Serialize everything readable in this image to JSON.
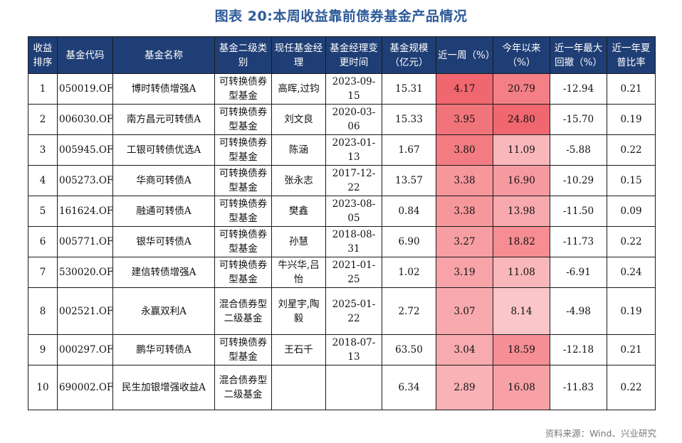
{
  "title": "图表 20:本周收益靠前债券基金产品情况",
  "headers": [
    "收益排序",
    "基金代码",
    "基金名称",
    "基金二级类别",
    "现任基金经理",
    "基金经理变更时间",
    "基金规模（亿元）",
    "近一周（%）",
    "今年以来（%）",
    "近一年最大回撤（%）",
    "近一年夏普比率"
  ],
  "rows": [
    {
      "rank": "1",
      "code": "050019.OF",
      "name": "博时转债增强A",
      "category": "可转换债券型基金",
      "manager": "高晖,过钧",
      "change_date": "2023-09-15",
      "size": "15.31",
      "week": "4.17",
      "ytd": "20.79",
      "drawdown": "-12.94",
      "sharpe": "0.21",
      "week_color": "#f0676f",
      "ytd_color": "#f47f86"
    },
    {
      "rank": "2",
      "code": "006030.OF",
      "name": "南方昌元可转债A",
      "category": "可转换债券型基金",
      "manager": "刘文良",
      "change_date": "2020-03-06",
      "size": "15.33",
      "week": "3.95",
      "ytd": "24.80",
      "drawdown": "-15.70",
      "sharpe": "0.19",
      "week_color": "#f2747b",
      "ytd_color": "#f0676f"
    },
    {
      "rank": "3",
      "code": "005945.OF",
      "name": "工银可转债优选A",
      "category": "可转换债券型基金",
      "manager": "陈涵",
      "change_date": "2023-01-13",
      "size": "1.67",
      "week": "3.80",
      "ytd": "11.09",
      "drawdown": "-5.88",
      "sharpe": "0.22",
      "week_color": "#f37c83",
      "ytd_color": "#f9b7bb"
    },
    {
      "rank": "4",
      "code": "005273.OF",
      "name": "华商可转债A",
      "category": "可转换债券型基金",
      "manager": "张永志",
      "change_date": "2017-12-22",
      "size": "13.57",
      "week": "3.38",
      "ytd": "16.90",
      "drawdown": "-10.29",
      "sharpe": "0.15",
      "week_color": "#f6979c",
      "ytd_color": "#f69aa0"
    },
    {
      "rank": "5",
      "code": "161624.OF",
      "name": "融通可转债A",
      "category": "可转换债券型基金",
      "manager": "樊鑫",
      "change_date": "2023-08-05",
      "size": "0.84",
      "week": "3.38",
      "ytd": "13.98",
      "drawdown": "-11.50",
      "sharpe": "0.09",
      "week_color": "#f6979c",
      "ytd_color": "#f7a9ae"
    },
    {
      "rank": "6",
      "code": "005771.OF",
      "name": "银华可转债A",
      "category": "可转换债券型基金",
      "manager": "孙慧",
      "change_date": "2018-08-31",
      "size": "6.90",
      "week": "3.27",
      "ytd": "18.82",
      "drawdown": "-11.73",
      "sharpe": "0.22",
      "week_color": "#f79ea3",
      "ytd_color": "#f58d93"
    },
    {
      "rank": "7",
      "code": "530020.OF",
      "name": "建信转债增强A",
      "category": "可转换债券型基金",
      "manager": "牛兴华,吕怡",
      "change_date": "2021-01-25",
      "size": "1.02",
      "week": "3.19",
      "ytd": "11.08",
      "drawdown": "-6.91",
      "sharpe": "0.24",
      "week_color": "#f8a3a8",
      "ytd_color": "#f9b7bb"
    },
    {
      "rank": "8",
      "code": "002521.OF",
      "name": "永赢双利A",
      "category": "混合债券型二级基金",
      "manager": "刘星宇,陶毅",
      "change_date": "2025-01-22",
      "size": "2.72",
      "week": "3.07",
      "ytd": "8.14",
      "drawdown": "-4.98",
      "sharpe": "0.19",
      "week_color": "#f8a9ad",
      "ytd_color": "#fbc6c9"
    },
    {
      "rank": "9",
      "code": "000297.OF",
      "name": "鹏华可转债A",
      "category": "可转换债券型基金",
      "manager": "王石千",
      "change_date": "2018-07-13",
      "size": "63.50",
      "week": "3.04",
      "ytd": "18.59",
      "drawdown": "-12.18",
      "sharpe": "0.21",
      "week_color": "#f8abaf",
      "ytd_color": "#f58f95"
    },
    {
      "rank": "10",
      "code": "690002.OF",
      "name": "民生加银增强收益A",
      "category": "混合债券型二级基金",
      "manager": "",
      "change_date": "",
      "size": "6.34",
      "week": "2.89",
      "ytd": "16.08",
      "drawdown": "-11.83",
      "sharpe": "0.22",
      "week_color": "#f9b2b6",
      "ytd_color": "#f7a1a6"
    }
  ],
  "source": "资料来源：Wind、兴业研究"
}
